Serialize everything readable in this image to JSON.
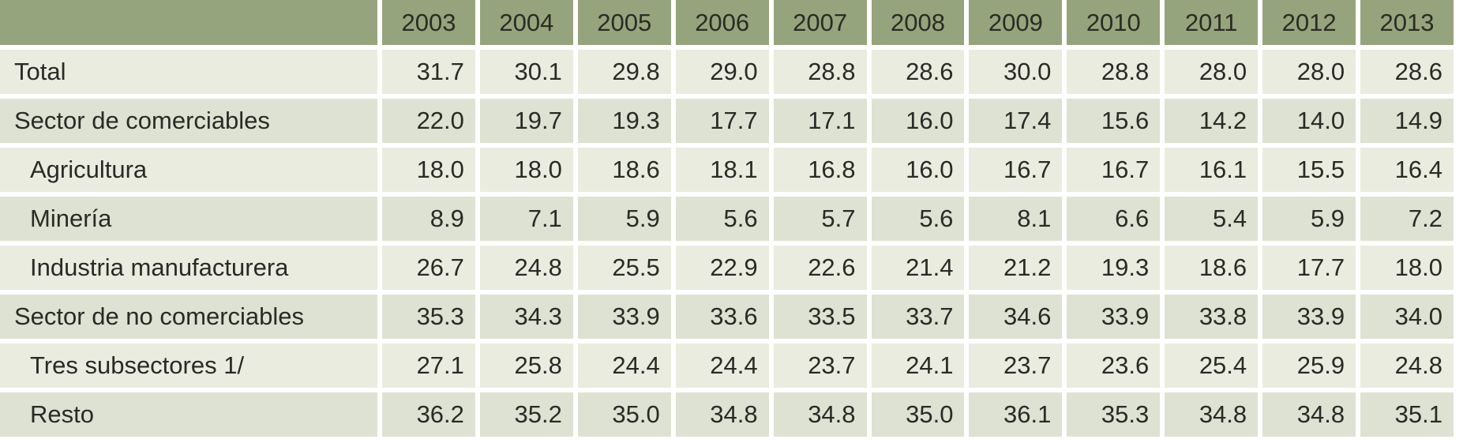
{
  "chart_data": {
    "type": "table",
    "header_corner": "",
    "columns": [
      "2003",
      "2004",
      "2005",
      "2006",
      "2007",
      "2008",
      "2009",
      "2010",
      "2011",
      "2012",
      "2013"
    ],
    "rows": [
      {
        "label": "Total",
        "indent": false,
        "values": [
          "31.7",
          "30.1",
          "29.8",
          "29.0",
          "28.8",
          "28.6",
          "30.0",
          "28.8",
          "28.0",
          "28.0",
          "28.6"
        ]
      },
      {
        "label": "Sector de comerciables",
        "indent": false,
        "values": [
          "22.0",
          "19.7",
          "19.3",
          "17.7",
          "17.1",
          "16.0",
          "17.4",
          "15.6",
          "14.2",
          "14.0",
          "14.9"
        ]
      },
      {
        "label": "Agricultura",
        "indent": true,
        "values": [
          "18.0",
          "18.0",
          "18.6",
          "18.1",
          "16.8",
          "16.0",
          "16.7",
          "16.7",
          "16.1",
          "15.5",
          "16.4"
        ]
      },
      {
        "label": "Minería",
        "indent": true,
        "values": [
          "8.9",
          "7.1",
          "5.9",
          "5.6",
          "5.7",
          "5.6",
          "8.1",
          "6.6",
          "5.4",
          "5.9",
          "7.2"
        ]
      },
      {
        "label": "Industria manufacturera",
        "indent": true,
        "values": [
          "26.7",
          "24.8",
          "25.5",
          "22.9",
          "22.6",
          "21.4",
          "21.2",
          "19.3",
          "18.6",
          "17.7",
          "18.0"
        ]
      },
      {
        "label": "Sector de no comerciables",
        "indent": false,
        "values": [
          "35.3",
          "34.3",
          "33.9",
          "33.6",
          "33.5",
          "33.7",
          "34.6",
          "33.9",
          "33.8",
          "33.9",
          "34.0"
        ]
      },
      {
        "label": "Tres subsectores 1/",
        "indent": true,
        "values": [
          "27.1",
          "25.8",
          "24.4",
          "24.4",
          "23.7",
          "24.1",
          "23.7",
          "23.6",
          "25.4",
          "25.9",
          "24.8"
        ]
      },
      {
        "label": "Resto",
        "indent": true,
        "values": [
          "36.2",
          "35.2",
          "35.0",
          "34.8",
          "34.8",
          "35.0",
          "36.1",
          "35.3",
          "34.8",
          "34.8",
          "35.1"
        ]
      }
    ]
  },
  "colors": {
    "header_bg": "#96a47d",
    "row_light": "#e9ecdf",
    "row_dark": "#dde2d2",
    "divider": "#ffffff"
  }
}
